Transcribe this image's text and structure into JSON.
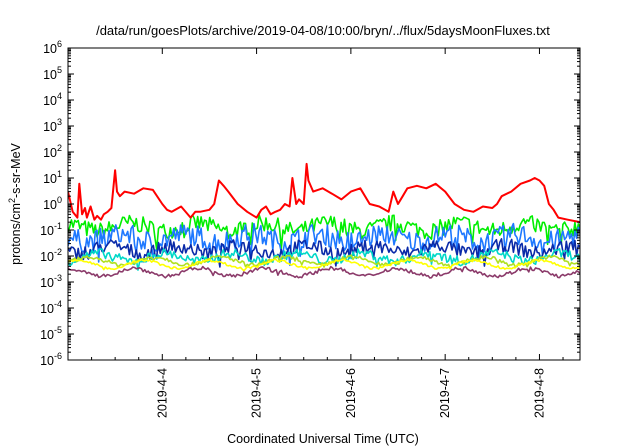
{
  "chart_data": {
    "type": "line",
    "title": "/data/run/goesPlots/archive/2019-04-08/10:00/bryn/../flux/5daysMoonFluxes.txt",
    "xlabel": "Coordinated Universal Time (UTC)",
    "ylabel": "protons/cm²-s-sr-MeV",
    "ylabel_parts": {
      "pre": "protons/cm",
      "sup": "2",
      "post": "-s-sr-MeV"
    },
    "yscale": "log",
    "ylim_exp": [
      -6,
      6
    ],
    "ytick_base": "10",
    "ytick_exps": [
      "-6",
      "-5",
      "-4",
      "-3",
      "-2",
      "-1",
      "0",
      "1",
      "2",
      "3",
      "4",
      "5",
      "6"
    ],
    "xlim_days": [
      3.0,
      8.43
    ],
    "xticks": [
      {
        "day": 4,
        "label": "2019-4-4"
      },
      {
        "day": 5,
        "label": "2019-4-5"
      },
      {
        "day": 6,
        "label": "2019-4-6"
      },
      {
        "day": 7,
        "label": "2019-4-7"
      },
      {
        "day": 8,
        "label": "2019-4-8"
      }
    ],
    "grid": false,
    "legend": "none",
    "series": [
      {
        "color": "#ff0000",
        "x": [
          3.0,
          3.05,
          3.1,
          3.12,
          3.15,
          3.18,
          3.2,
          3.24,
          3.28,
          3.31,
          3.35,
          3.38,
          3.42,
          3.46,
          3.5,
          3.52,
          3.55,
          3.6,
          3.7,
          3.8,
          3.9,
          4.0,
          4.05,
          4.1,
          4.2,
          4.3,
          4.35,
          4.4,
          4.5,
          4.55,
          4.6,
          4.65,
          4.7,
          4.8,
          4.9,
          5.0,
          5.05,
          5.1,
          5.15,
          5.2,
          5.25,
          5.3,
          5.35,
          5.38,
          5.42,
          5.45,
          5.5,
          5.53,
          5.55,
          5.6,
          5.7,
          5.8,
          5.9,
          6.0,
          6.1,
          6.2,
          6.3,
          6.4,
          6.45,
          6.5,
          6.55,
          6.6,
          6.7,
          6.8,
          6.9,
          7.0,
          7.1,
          7.2,
          7.3,
          7.4,
          7.5,
          7.55,
          7.6,
          7.7,
          7.8,
          7.9,
          7.95,
          8.0,
          8.05,
          8.1,
          8.15,
          8.2,
          8.3,
          8.43
        ],
        "y": [
          3.0,
          0.5,
          0.3,
          6.0,
          0.4,
          0.7,
          0.3,
          0.8,
          0.25,
          0.35,
          0.25,
          0.4,
          0.5,
          0.7,
          20.0,
          3.0,
          2.0,
          3.0,
          2.5,
          4.0,
          3.5,
          1.0,
          0.6,
          0.5,
          0.8,
          0.3,
          0.5,
          0.5,
          0.6,
          1.0,
          8.0,
          5.0,
          3.0,
          1.0,
          0.5,
          0.3,
          0.6,
          0.8,
          0.4,
          0.5,
          0.6,
          1.0,
          0.8,
          10.0,
          1.0,
          1.5,
          1.0,
          35.0,
          8.0,
          3.0,
          4.0,
          2.5,
          1.5,
          3.0,
          4.0,
          1.0,
          0.8,
          0.5,
          3.0,
          1.0,
          2.0,
          4.0,
          5.0,
          4.0,
          6.0,
          3.0,
          1.0,
          0.6,
          0.5,
          0.8,
          0.7,
          1.0,
          2.0,
          3.0,
          6.0,
          8.0,
          10.0,
          8.0,
          5.0,
          1.0,
          0.6,
          0.3,
          0.25,
          0.2
        ]
      },
      {
        "color": "#00ee00",
        "level": 0.13,
        "amp": 0.55
      },
      {
        "color": "#1e78ff",
        "level": 0.05,
        "amp": 0.7
      },
      {
        "color": "#0a2aa8",
        "level": 0.018,
        "amp": 0.45
      },
      {
        "color": "#00d8c8",
        "level": 0.009,
        "amp": 0.3
      },
      {
        "color": "#b0e020",
        "level": 0.0065,
        "amp": 0.12
      },
      {
        "color": "#ffff00",
        "level": 0.0048,
        "amp": 0.08
      },
      {
        "color": "#8b3a6a",
        "level": 0.0024,
        "amp": 0.12
      }
    ]
  }
}
